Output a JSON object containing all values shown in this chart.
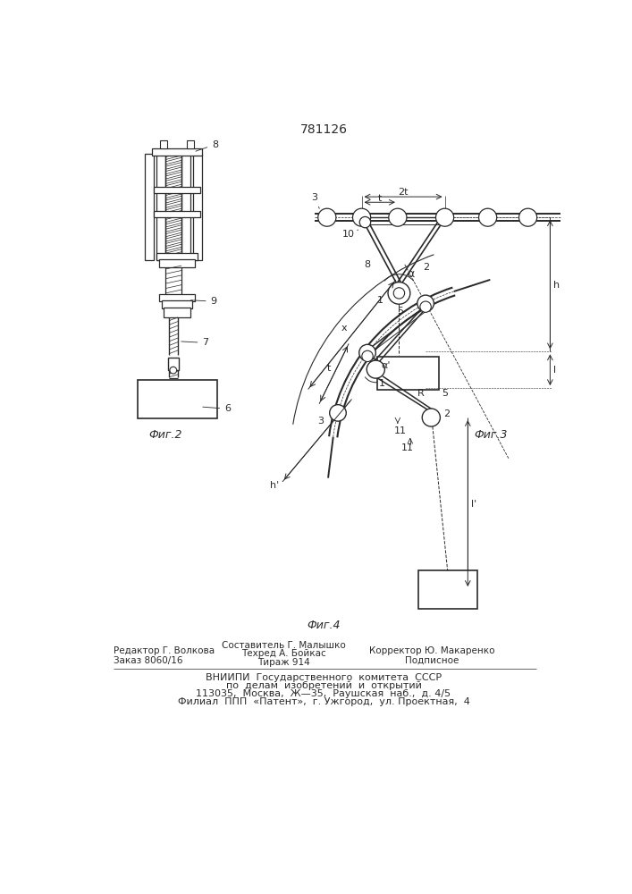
{
  "title": "781126",
  "line_color": "#2a2a2a",
  "fig2_label": "Фиг.2",
  "fig3_label": "Фиг.3",
  "fig4_label": "Фиг.4",
  "footer_line1": "Редактор Г. Волкова",
  "footer_line2": "Заказ 8060/16",
  "footer_col2_line1": "Составитель Г. Малышко",
  "footer_col2_line2": "Техред А. Бойкас",
  "footer_col2_line3": "Тираж 914",
  "footer_col3_line1": "Корректор Ю. Макаренко",
  "footer_col3_line2": "Подписное",
  "footer_vniipi1": "ВНИИПИ  Государственного  комитета  СССР",
  "footer_vniipi2": "по  делам  изобретений  и  открытий",
  "footer_vniipi3": "113035,  Москва,  Ж—35,  Раушская  наб.,  д. 4/5",
  "footer_vniipi4": "Филиал  ППП  «Патент»,  г. Ужгород,  ул. Проектная,  4"
}
